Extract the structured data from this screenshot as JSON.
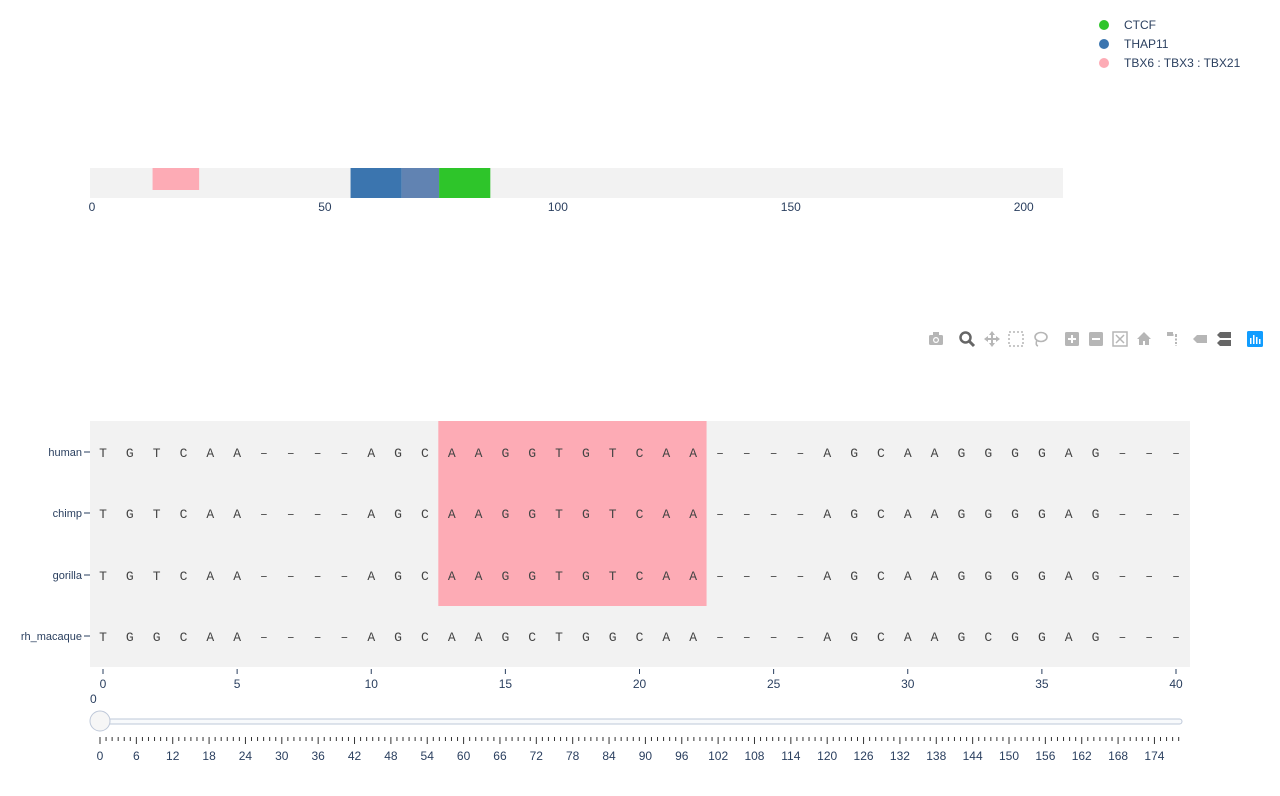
{
  "legend": {
    "items": [
      {
        "name": "CTCF",
        "color": "#2ec52a"
      },
      {
        "name": "THAP11",
        "color": "#3b75af"
      },
      {
        "name": "TBX6 : TBX3 : TBX21",
        "color": "#fdabb5"
      }
    ]
  },
  "modebar": {
    "buttons": [
      "camera-icon",
      "zoom-icon",
      "pan-icon",
      "box-select-icon",
      "lasso-icon",
      "zoom-in-icon",
      "zoom-out-icon",
      "autoscale-icon",
      "reset-axes-icon",
      "spike-lines-icon",
      "hover-closest-icon",
      "hover-compare-icon",
      "plotly-logo-icon"
    ]
  },
  "slider": {
    "current_label": "0",
    "value": 0,
    "min": 0,
    "max": 178,
    "label_step": 6,
    "labels": [
      0,
      6,
      12,
      18,
      24,
      30,
      36,
      42,
      48,
      54,
      60,
      66,
      72,
      78,
      84,
      90,
      96,
      102,
      108,
      114,
      120,
      126,
      132,
      138,
      144,
      150,
      156,
      162,
      168,
      174
    ]
  },
  "chart_data": [
    {
      "type": "bar",
      "title": "",
      "orientation": "horizontal",
      "xlim": [
        0,
        208
      ],
      "xticks": [
        0,
        50,
        100,
        150,
        200
      ],
      "tracks": [
        {
          "name": "TBX6 : TBX3 : TBX21",
          "start": 13,
          "end": 23,
          "color": "#fdabb5"
        },
        {
          "name": "THAP11",
          "start": 55.5,
          "end": 66.5,
          "color": "#3b75af"
        },
        {
          "name": "THAP11",
          "start": 66.5,
          "end": 74.5,
          "color": "#6183b2"
        },
        {
          "name": "CTCF",
          "start": 74.5,
          "end": 85.5,
          "color": "#2ec52a"
        }
      ]
    },
    {
      "type": "heatmap",
      "title": "",
      "xlim": [
        -0.5,
        40.5
      ],
      "xticks": [
        0,
        5,
        10,
        15,
        20,
        25,
        30,
        35,
        40
      ],
      "rows": [
        "human",
        "chimp",
        "gorilla",
        "rh_macaque"
      ],
      "highlight": {
        "start": 12.5,
        "end": 22.5,
        "rows": [
          "human",
          "chimp",
          "gorilla"
        ],
        "color": "#fdabb5"
      },
      "sequences": {
        "human": "TGTCAA----AGCAAGGTGTCAA----AGCAAGGGGAG---",
        "chimp": "TGTCAA----AGCAAGGTGTCAA----AGCAAGGGGAG---",
        "gorilla": "TGTCAA----AGCAAGGTGTCAA----AGCAAGGGGAG---",
        "rh_macaque": "TGGCAA----AGCAAGCTGGCAA----AGCAAGCGGAG---"
      }
    }
  ]
}
